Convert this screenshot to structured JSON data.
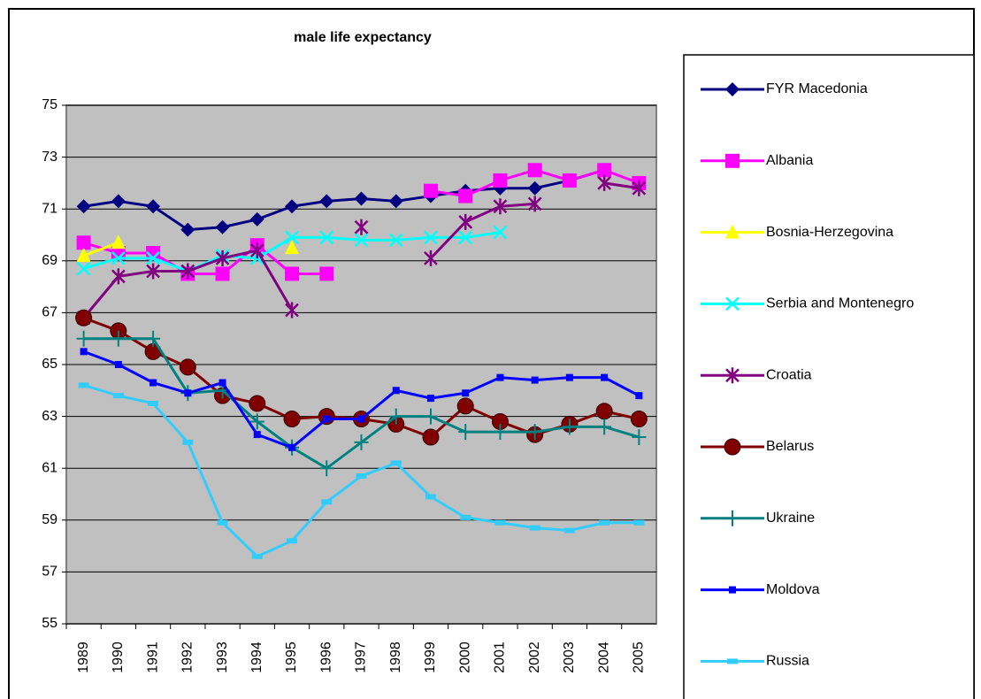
{
  "chart_data": {
    "type": "line",
    "title": "male life expectancy",
    "categories": [
      "1989",
      "1990",
      "1991",
      "1992",
      "1993",
      "1994",
      "1995",
      "1996",
      "1997",
      "1998",
      "1999",
      "2000",
      "2001",
      "2002",
      "2003",
      "2004",
      "2005"
    ],
    "ylim": [
      55,
      75
    ],
    "yticks": [
      55,
      57,
      59,
      61,
      63,
      65,
      67,
      69,
      71,
      73,
      75
    ],
    "grid": true,
    "series": [
      {
        "name": "FYR Macedonia",
        "color": "#000080",
        "marker": "diamond",
        "values": [
          71.1,
          71.3,
          71.1,
          70.2,
          70.3,
          70.6,
          71.1,
          71.3,
          71.4,
          71.3,
          71.5,
          71.7,
          71.8,
          71.8,
          72.1,
          72.5,
          null
        ]
      },
      {
        "name": "Albania",
        "color": "#ff00ff",
        "marker": "square",
        "values": [
          69.7,
          69.3,
          69.3,
          68.5,
          68.5,
          69.6,
          68.5,
          68.5,
          null,
          null,
          71.7,
          71.5,
          72.1,
          72.5,
          72.1,
          72.5,
          72.0
        ]
      },
      {
        "name": "Bosnia-Herzegovina",
        "color": "#ffff00",
        "marker": "triangle",
        "values": [
          69.2,
          69.7,
          null,
          null,
          null,
          null,
          69.5,
          null,
          null,
          null,
          null,
          null,
          null,
          null,
          null,
          null,
          null
        ]
      },
      {
        "name": "Serbia and Montenegro",
        "color": "#00ffff",
        "marker": "x",
        "values": [
          68.7,
          69.1,
          69.1,
          68.6,
          69.2,
          69.1,
          69.9,
          69.9,
          69.8,
          69.8,
          69.9,
          69.9,
          70.1,
          null,
          null,
          null,
          null
        ]
      },
      {
        "name": "Croatia",
        "color": "#800080",
        "marker": "star",
        "values": [
          66.8,
          68.4,
          68.6,
          68.6,
          69.1,
          69.4,
          67.1,
          null,
          70.3,
          null,
          69.1,
          70.5,
          71.1,
          71.2,
          null,
          72.0,
          71.8
        ]
      },
      {
        "name": "Belarus",
        "color": "#800000",
        "marker": "circle",
        "values": [
          66.8,
          66.3,
          65.5,
          64.9,
          63.8,
          63.5,
          62.9,
          63.0,
          62.9,
          62.7,
          62.2,
          63.4,
          62.8,
          62.3,
          62.7,
          63.2,
          62.9
        ]
      },
      {
        "name": "Ukraine",
        "color": "#008080",
        "marker": "plus",
        "values": [
          66.0,
          66.0,
          66.0,
          63.9,
          64.0,
          62.8,
          61.8,
          61.0,
          62.0,
          63.0,
          63.0,
          62.4,
          62.4,
          62.4,
          62.6,
          62.6,
          62.2
        ]
      },
      {
        "name": "Moldova",
        "color": "#0000ff",
        "marker": "smallsquare",
        "values": [
          65.5,
          65.0,
          64.3,
          63.9,
          64.3,
          62.3,
          61.8,
          62.9,
          62.9,
          64.0,
          63.7,
          63.9,
          64.5,
          64.4,
          64.5,
          64.5,
          63.8
        ]
      },
      {
        "name": "Russia",
        "color": "#33ccff",
        "marker": "dash",
        "values": [
          64.2,
          63.8,
          63.5,
          62.0,
          58.9,
          57.6,
          58.2,
          59.7,
          60.7,
          61.2,
          59.9,
          59.1,
          58.9,
          58.7,
          58.6,
          58.9,
          58.9
        ]
      }
    ]
  }
}
